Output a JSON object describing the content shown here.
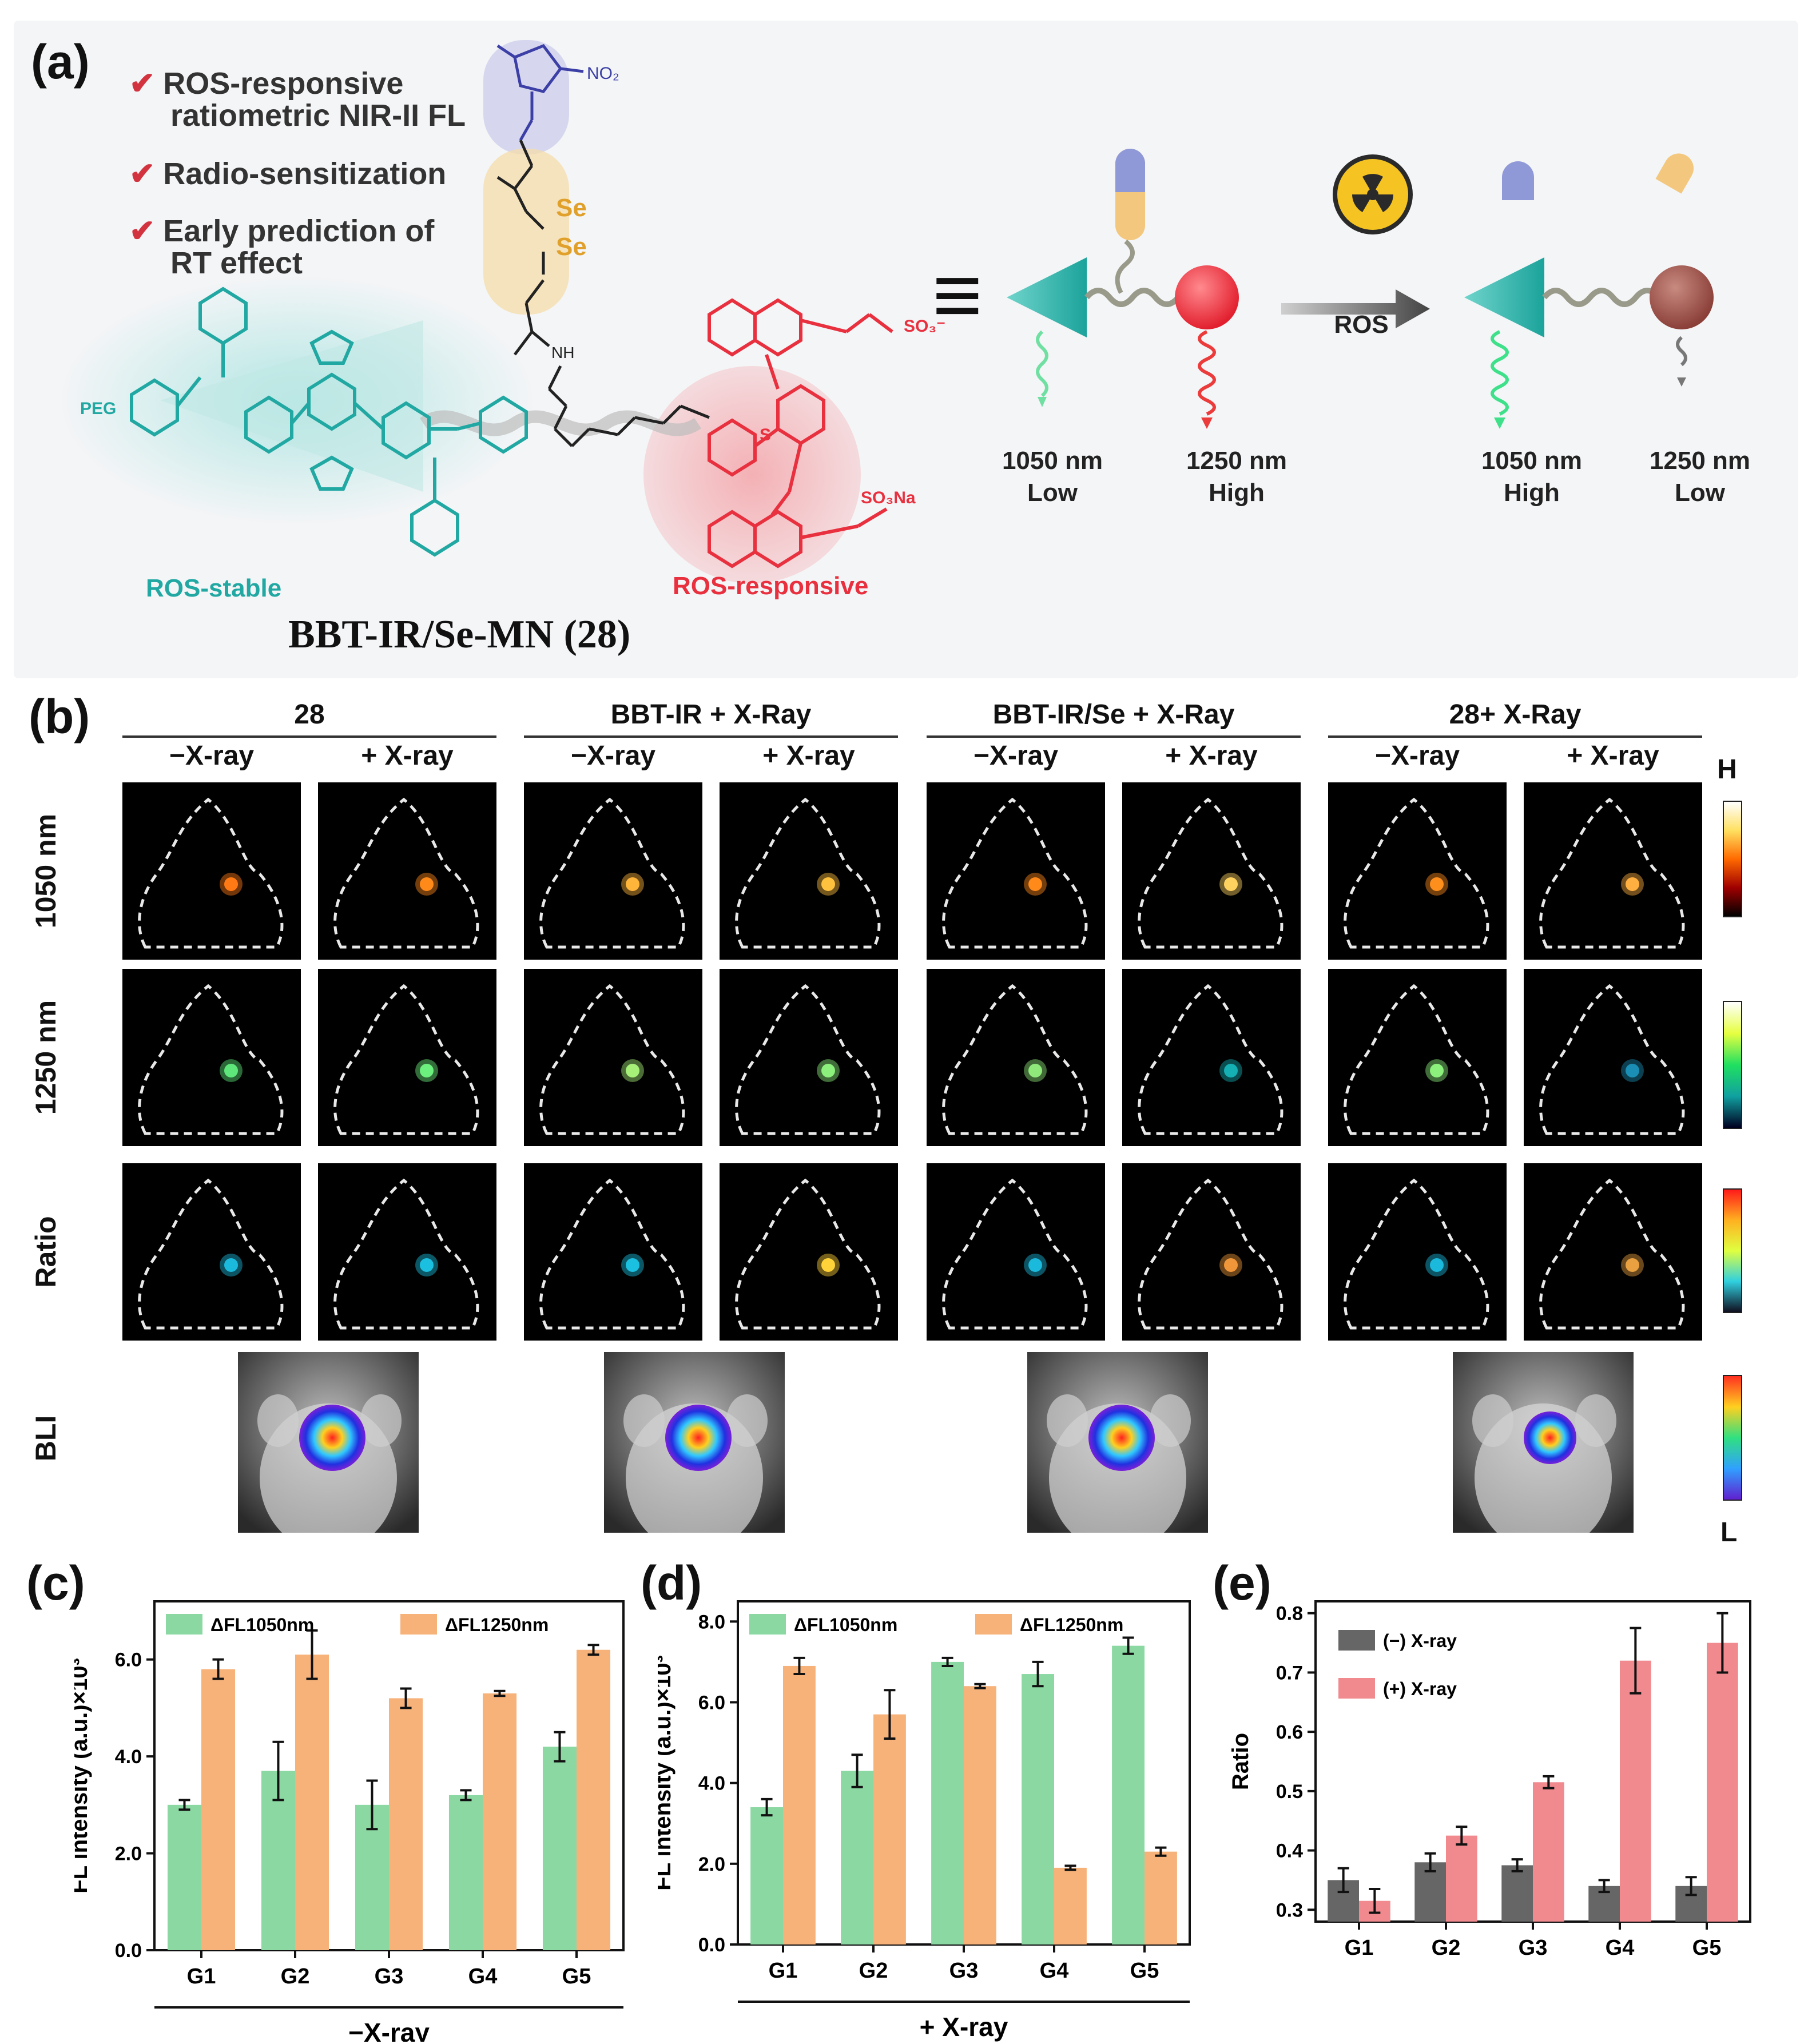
{
  "panel_a": {
    "letter": "(a)",
    "features": [
      "ROS-responsive ratiometric NIR-II FL",
      "Radio-sensitization",
      "Early prediction of RT effect"
    ],
    "feature_lines": [
      [
        "ROS-responsive",
        "ratiometric NIR-II FL"
      ],
      [
        "Radio-sensitization"
      ],
      [
        "Early prediction of",
        "RT effect"
      ]
    ],
    "molecule_labels": {
      "peg": "PEG",
      "stable": "ROS-stable",
      "responsive": "ROS-responsive",
      "no2": "NO₂",
      "se1": "Se",
      "se2": "Se",
      "nh": "NH",
      "so3": "SO₃⁻",
      "so3na": "SO₃Na",
      "s": "S"
    },
    "compound_name": "BBT-IR/Se-MN (28)",
    "equiv_symbol": "≡",
    "arrow_label": "ROS",
    "before": {
      "left_nm": "1050 nm",
      "left_level": "Low",
      "right_nm": "1250 nm",
      "right_level": "High"
    },
    "after": {
      "left_nm": "1050 nm",
      "left_level": "High",
      "right_nm": "1250 nm",
      "right_level": "Low"
    },
    "colors": {
      "stable": "#21a8a3",
      "responsive": "#e8303f",
      "selenium": "#e0a02a",
      "nitroimidazole": "#3b3fa6"
    }
  },
  "panel_b": {
    "letter": "(b)",
    "groups": [
      "28",
      "BBT-IR + X-Ray",
      "BBT-IR/Se + X-Ray",
      "28+ X-Ray"
    ],
    "sub": [
      "−X-ray",
      "+ X-ray"
    ],
    "rows": [
      "1050 nm",
      "1250 nm",
      "Ratio",
      "BLI"
    ],
    "scale_high": "H",
    "scale_low": "L",
    "spot_colors": {
      "1050": [
        "#ff7a14",
        "#ff8a1a",
        "#ffb43a",
        "#ffc23f",
        "#ff8a1a",
        "#ffd260",
        "#ff8f1c",
        "#ffb040"
      ],
      "1250": [
        "#5ee67a",
        "#6cf07e",
        "#a6f07a",
        "#8cf07c",
        "#8ee87a",
        "#14b0b4",
        "#8cf07c",
        "#1a8eb4"
      ],
      "ratio": [
        "#1bb9dc",
        "#1bc0e0",
        "#1bc0e0",
        "#ffd23a",
        "#1bb9dc",
        "#f0963a",
        "#1bb9dc",
        "#e8a040"
      ]
    }
  },
  "chart_data": [
    {
      "id": "c",
      "letter": "(c)",
      "type": "bar",
      "categories": [
        "G1",
        "G2",
        "G3",
        "G4",
        "G5"
      ],
      "series": [
        {
          "name": "ΔFL1050nm",
          "values": [
            3.0,
            3.7,
            3.0,
            3.2,
            4.2
          ],
          "errors": [
            0.1,
            0.6,
            0.5,
            0.1,
            0.3
          ],
          "color": "#8bd8a3"
        },
        {
          "name": "ΔFL1250nm",
          "values": [
            5.8,
            6.1,
            5.2,
            5.3,
            6.2
          ],
          "errors": [
            0.2,
            0.5,
            0.2,
            0.05,
            0.1
          ],
          "color": "#f7b27a"
        }
      ],
      "ylabel": "FL intensity (a.u.)×10³",
      "ylim": [
        0,
        7.2
      ],
      "yticks": [
        "0.0",
        "2.0",
        "4.0",
        "6.0"
      ],
      "ytick_values": [
        0,
        2,
        4,
        6
      ],
      "xgroup_label": "−X-ray",
      "legend": "top"
    },
    {
      "id": "d",
      "letter": "(d)",
      "type": "bar",
      "categories": [
        "G1",
        "G2",
        "G3",
        "G4",
        "G5"
      ],
      "series": [
        {
          "name": "ΔFL1050nm",
          "values": [
            3.4,
            4.3,
            7.0,
            6.7,
            7.4
          ],
          "errors": [
            0.2,
            0.4,
            0.1,
            0.3,
            0.2
          ],
          "color": "#8bd8a3"
        },
        {
          "name": "ΔFL1250nm",
          "values": [
            6.9,
            5.7,
            6.4,
            1.9,
            2.3
          ],
          "errors": [
            0.2,
            0.6,
            0.05,
            0.05,
            0.1
          ],
          "color": "#f7b27a"
        }
      ],
      "ylabel": "FL intensity (a.u.)×10³",
      "ylim": [
        0,
        8.5
      ],
      "yticks": [
        "0.0",
        "2.0",
        "4.0",
        "6.0",
        "8.0"
      ],
      "ytick_values": [
        0,
        2,
        4,
        6,
        8
      ],
      "xgroup_label": "+ X-ray",
      "legend": "top"
    },
    {
      "id": "e",
      "letter": "(e)",
      "type": "bar",
      "categories": [
        "G1",
        "G2",
        "G3",
        "G4",
        "G5"
      ],
      "series": [
        {
          "name": "(−) X-ray",
          "values": [
            0.35,
            0.38,
            0.375,
            0.34,
            0.34
          ],
          "errors": [
            0.02,
            0.015,
            0.01,
            0.01,
            0.015
          ],
          "color": "#666666"
        },
        {
          "name": "(+) X-ray",
          "values": [
            0.315,
            0.425,
            0.515,
            0.72,
            0.75
          ],
          "errors": [
            0.02,
            0.015,
            0.01,
            0.055,
            0.05
          ],
          "color": "#f08a8e"
        }
      ],
      "ylabel": "Ratio",
      "ylim": [
        0.28,
        0.82
      ],
      "yticks": [
        "0.3",
        "0.4",
        "0.5",
        "0.6",
        "0.7",
        "0.8"
      ],
      "ytick_values": [
        0.3,
        0.4,
        0.5,
        0.6,
        0.7,
        0.8
      ],
      "legend": "top-left"
    }
  ]
}
